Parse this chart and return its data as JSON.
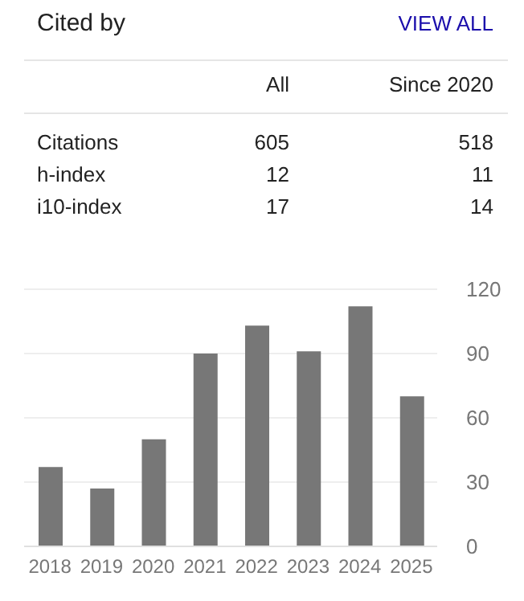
{
  "chart_data": [
    {
      "type": "other",
      "title": "Cited by",
      "annotations": [
        "VIEW ALL",
        "All",
        "Since 2020",
        "Citations",
        "605",
        "518",
        "h-index",
        "12",
        "11",
        "i10-index",
        "17",
        "14"
      ]
    },
    {
      "type": "bar",
      "categories": [
        "2018",
        "2019",
        "2020",
        "2021",
        "2022",
        "2023",
        "2024",
        "2025"
      ],
      "values": [
        37,
        27,
        50,
        90,
        103,
        91,
        112,
        70
      ],
      "color": "#777777",
      "ylim": [
        0,
        120
      ],
      "yticks": [
        0,
        30,
        60,
        90,
        120
      ],
      "grid": "y"
    }
  ]
}
